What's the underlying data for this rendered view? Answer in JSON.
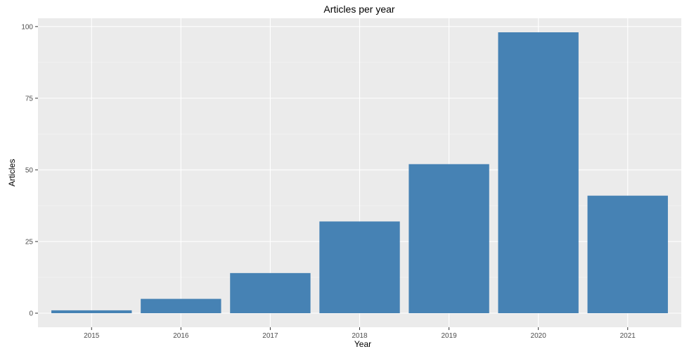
{
  "chart_data": {
    "type": "bar",
    "title": "Articles per year",
    "xlabel": "Year",
    "ylabel": "Articles",
    "categories": [
      "2015",
      "2016",
      "2017",
      "2018",
      "2019",
      "2020",
      "2021"
    ],
    "values": [
      1,
      5,
      14,
      32,
      52,
      98,
      41
    ],
    "ylim": [
      0,
      100
    ],
    "yticks": [
      0,
      25,
      50,
      75,
      100
    ],
    "grid": true,
    "legend": "none",
    "colors": {
      "bar": "#4682B4",
      "panel": "#EBEBEB",
      "grid_major": "#FFFFFF",
      "tick_text": "#4D4D4D"
    }
  }
}
